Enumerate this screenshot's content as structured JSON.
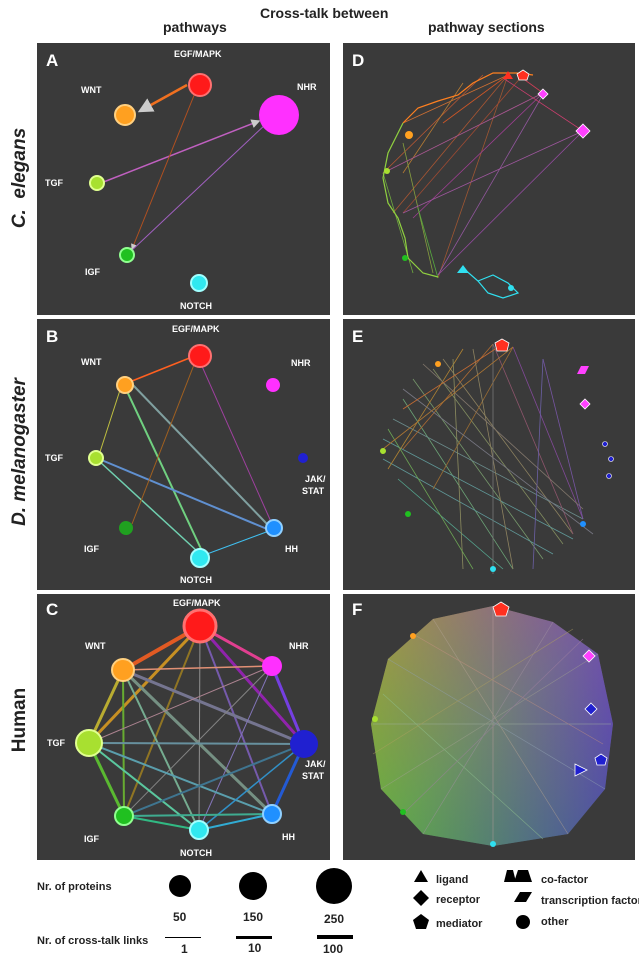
{
  "header": {
    "left": "pathways",
    "center": "Cross-talk between",
    "right": "pathway sections"
  },
  "organisms": [
    {
      "line1": "C.",
      "line2": "elegans"
    },
    {
      "line1": "D.",
      "line2": "melanogaster"
    },
    {
      "line1": "Human",
      "line2": ""
    }
  ],
  "panels": {
    "A": {
      "letter": "A"
    },
    "B": {
      "letter": "B"
    },
    "C": {
      "letter": "C"
    },
    "D": {
      "letter": "D"
    },
    "E": {
      "letter": "E"
    },
    "F": {
      "letter": "F"
    }
  },
  "pathway_labels": {
    "EGF": "EGF/MAPK",
    "WNT": "WNT",
    "NHR": "NHR",
    "TGF": "TGF",
    "IGF": "IGF",
    "NOTCH": "NOTCH",
    "HH": "HH",
    "JAK1": "JAK/",
    "JAK2": "STAT"
  },
  "pathway_colors": {
    "EGF": "#ff1a1a",
    "WNT": "#ffa020",
    "NHR": "#ff30ff",
    "TGF": "#a8e030",
    "IGF": "#20c020",
    "NOTCH": "#30e8f0",
    "HH": "#2090ff",
    "JAK": "#2020d0"
  },
  "legend": {
    "proteins_title": "Nr. of proteins",
    "protein_sizes": [
      "50",
      "150",
      "250"
    ],
    "links_title": "Nr. of cross-talk links",
    "link_counts": [
      "1",
      "10",
      "100"
    ],
    "shapes": {
      "ligand": "ligand",
      "receptor": "receptor",
      "mediator": "mediator",
      "cofactor": "co-factor",
      "tf": "transcription factor",
      "other": "other"
    }
  }
}
